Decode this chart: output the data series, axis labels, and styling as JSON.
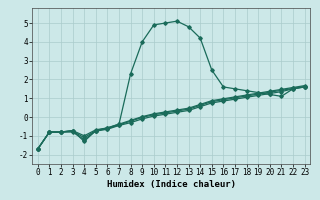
{
  "xlabel": "Humidex (Indice chaleur)",
  "bg_color": "#cce8e8",
  "grid_color": "#aacccc",
  "line_color": "#1a6b5a",
  "xlim": [
    -0.5,
    23.5
  ],
  "ylim": [
    -2.5,
    5.8
  ],
  "xticks": [
    0,
    1,
    2,
    3,
    4,
    5,
    6,
    7,
    8,
    9,
    10,
    11,
    12,
    13,
    14,
    15,
    16,
    17,
    18,
    19,
    20,
    21,
    22,
    23
  ],
  "yticks": [
    -2,
    -1,
    0,
    1,
    2,
    3,
    4,
    5
  ],
  "x": [
    0,
    1,
    2,
    3,
    4,
    5,
    6,
    7,
    8,
    9,
    10,
    11,
    12,
    13,
    14,
    15,
    16,
    17,
    18,
    19,
    20,
    21,
    22,
    23
  ],
  "line1": [
    -1.7,
    -0.8,
    -0.8,
    -0.8,
    -1.2,
    -0.75,
    -0.65,
    -0.45,
    -0.3,
    -0.1,
    0.05,
    0.15,
    0.25,
    0.35,
    0.55,
    0.75,
    0.85,
    0.95,
    1.05,
    1.15,
    1.25,
    1.35,
    1.5,
    1.6
  ],
  "line2": [
    -1.7,
    -0.8,
    -0.8,
    -0.75,
    -1.1,
    -0.72,
    -0.62,
    -0.42,
    -0.22,
    -0.02,
    0.12,
    0.22,
    0.32,
    0.42,
    0.62,
    0.82,
    0.92,
    1.02,
    1.12,
    1.22,
    1.32,
    1.42,
    1.52,
    1.62
  ],
  "line3": [
    -1.7,
    -0.8,
    -0.8,
    -0.72,
    -1.0,
    -0.68,
    -0.58,
    -0.38,
    -0.18,
    0.02,
    0.17,
    0.27,
    0.37,
    0.47,
    0.67,
    0.87,
    0.97,
    1.07,
    1.17,
    1.27,
    1.37,
    1.47,
    1.57,
    1.67
  ],
  "line4": [
    -1.7,
    -0.8,
    -0.8,
    -0.72,
    -1.3,
    -0.72,
    -0.58,
    -0.38,
    2.3,
    4.0,
    4.9,
    5.0,
    5.1,
    4.8,
    4.2,
    2.5,
    1.6,
    1.5,
    1.4,
    1.3,
    1.2,
    1.1,
    1.5,
    1.6
  ]
}
